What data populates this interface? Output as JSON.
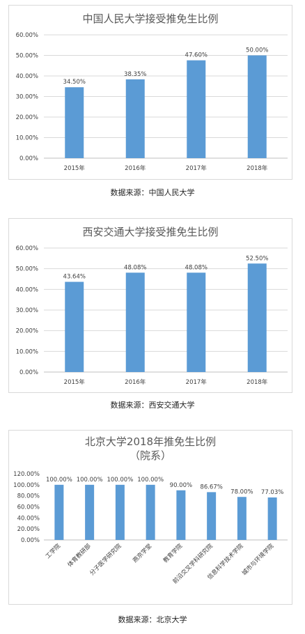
{
  "colors": {
    "bar": "#5b9bd5",
    "grid": "#d9d9d9",
    "axis": "#bfbfbf",
    "text": "#404040"
  },
  "chart_data": [
    {
      "type": "bar",
      "title": "中国人民大学接受推免生比例",
      "categories": [
        "2015年",
        "2016年",
        "2017年",
        "2018年"
      ],
      "values": [
        34.5,
        38.35,
        47.6,
        50.0
      ],
      "value_labels": [
        "34.50%",
        "38.35%",
        "47.60%",
        "50.00%"
      ],
      "y_ticks": [
        "0.00%",
        "10.00%",
        "20.00%",
        "30.00%",
        "40.00%",
        "50.00%",
        "60.00%"
      ],
      "ylim": [
        0,
        60
      ],
      "grid": true,
      "caption": "数据来源：中国人民大学"
    },
    {
      "type": "bar",
      "title": "西安交通大学接受推免生比例",
      "categories": [
        "2015年",
        "2016年",
        "2017年",
        "2018年"
      ],
      "values": [
        43.64,
        48.08,
        48.08,
        52.5
      ],
      "value_labels": [
        "43.64%",
        "48.08%",
        "48.08%",
        "52.50%"
      ],
      "y_ticks": [
        "0.00%",
        "10.00%",
        "20.00%",
        "30.00%",
        "40.00%",
        "50.00%",
        "60.00%"
      ],
      "ylim": [
        0,
        60
      ],
      "grid": true,
      "caption": "数据来源：西安交通大学"
    },
    {
      "type": "bar",
      "title": "北京大学2018年推免生比例",
      "subtitle": "（院系）",
      "categories": [
        "工学院",
        "体育教研部",
        "分子医学研究院",
        "燕京学堂",
        "教育学院",
        "前沿交叉学科研究院",
        "信息科学技术学院",
        "城市与环境学院"
      ],
      "values": [
        100.0,
        100.0,
        100.0,
        100.0,
        90.0,
        86.67,
        78.0,
        77.03
      ],
      "value_labels": [
        "100.00%",
        "100.00%",
        "100.00%",
        "100.00%",
        "90.00%",
        "86.67%",
        "78.00%",
        "77.03%"
      ],
      "y_ticks": [
        "0.00%",
        "20.00%",
        "40.00%",
        "60.00%",
        "80.00%",
        "100.00%",
        "120.00%"
      ],
      "ylim": [
        0,
        120
      ],
      "grid": false,
      "caption": "数据来源：北京大学"
    }
  ]
}
